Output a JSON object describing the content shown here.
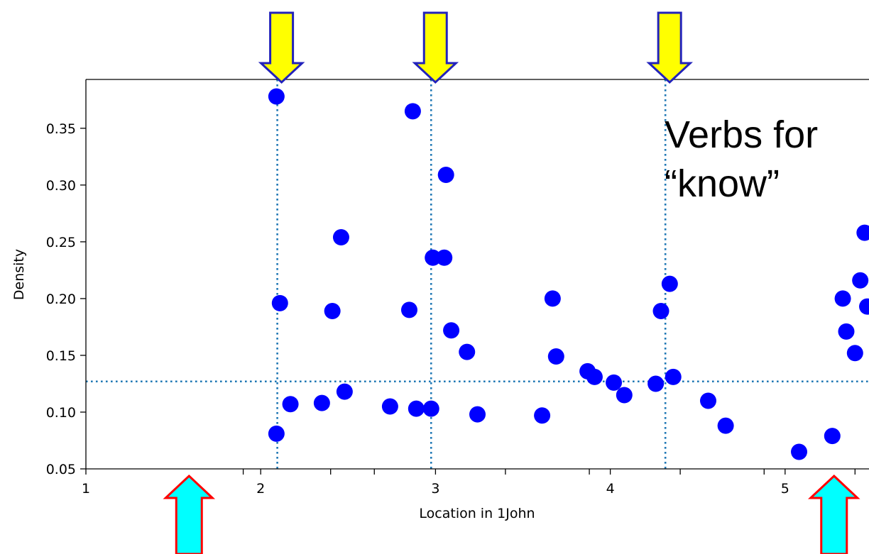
{
  "chart_data": {
    "type": "scatter",
    "xlabel": "Location in 1John",
    "ylabel": "Density",
    "xlim": [
      1.0,
      5.48
    ],
    "ylim": [
      0.05,
      0.393
    ],
    "x_ticks": [
      1,
      2,
      3,
      4,
      5
    ],
    "x_minor_ticks": [
      1.9,
      2.4,
      2.65,
      3.4,
      3.88,
      4.4,
      4.88,
      5.4
    ],
    "y_ticks": [
      0.05,
      0.1,
      0.15,
      0.2,
      0.25,
      0.3,
      0.35
    ],
    "y_tick_labels": [
      "0.05",
      "0.10",
      "0.15",
      "0.20",
      "0.25",
      "0.30",
      "0.35"
    ],
    "x_tick_labels": [
      "1",
      "2",
      "3",
      "4",
      "5"
    ],
    "grid": false,
    "reference_lines": {
      "horizontal_y": 0.127,
      "vertical_x": [
        2.095,
        2.975,
        4.315
      ]
    },
    "annotation": [
      "Verbs for",
      "“know”"
    ],
    "marker_color": "#0000ff",
    "reference_line_color": "#1f77b4",
    "top_arrow_color": "#ffff00",
    "top_arrow_edge": "#2222bb",
    "bottom_arrow_color": "#00ffff",
    "bottom_arrow_edge": "#ff0000",
    "top_arrows_x": [
      2.095,
      2.975,
      4.315
    ],
    "bottom_arrows_x": [
      1.59,
      5.28
    ],
    "points": [
      {
        "x": 2.09,
        "y": 0.378
      },
      {
        "x": 2.11,
        "y": 0.196
      },
      {
        "x": 2.09,
        "y": 0.081
      },
      {
        "x": 2.17,
        "y": 0.107
      },
      {
        "x": 2.35,
        "y": 0.108
      },
      {
        "x": 2.41,
        "y": 0.189
      },
      {
        "x": 2.46,
        "y": 0.254
      },
      {
        "x": 2.48,
        "y": 0.118
      },
      {
        "x": 2.74,
        "y": 0.105
      },
      {
        "x": 2.85,
        "y": 0.19
      },
      {
        "x": 2.87,
        "y": 0.365
      },
      {
        "x": 2.89,
        "y": 0.103
      },
      {
        "x": 2.975,
        "y": 0.103
      },
      {
        "x": 2.985,
        "y": 0.236
      },
      {
        "x": 3.05,
        "y": 0.236
      },
      {
        "x": 3.06,
        "y": 0.309
      },
      {
        "x": 3.09,
        "y": 0.172
      },
      {
        "x": 3.18,
        "y": 0.153
      },
      {
        "x": 3.24,
        "y": 0.098
      },
      {
        "x": 3.61,
        "y": 0.097
      },
      {
        "x": 3.67,
        "y": 0.2
      },
      {
        "x": 3.69,
        "y": 0.149
      },
      {
        "x": 3.87,
        "y": 0.136
      },
      {
        "x": 3.91,
        "y": 0.131
      },
      {
        "x": 4.02,
        "y": 0.126
      },
      {
        "x": 4.08,
        "y": 0.115
      },
      {
        "x": 4.26,
        "y": 0.125
      },
      {
        "x": 4.29,
        "y": 0.189
      },
      {
        "x": 4.34,
        "y": 0.213
      },
      {
        "x": 4.36,
        "y": 0.131
      },
      {
        "x": 4.56,
        "y": 0.11
      },
      {
        "x": 4.66,
        "y": 0.088
      },
      {
        "x": 5.08,
        "y": 0.065
      },
      {
        "x": 5.27,
        "y": 0.079
      },
      {
        "x": 5.33,
        "y": 0.2
      },
      {
        "x": 5.35,
        "y": 0.171
      },
      {
        "x": 5.4,
        "y": 0.152
      },
      {
        "x": 5.43,
        "y": 0.216
      },
      {
        "x": 5.455,
        "y": 0.258
      },
      {
        "x": 5.47,
        "y": 0.193
      }
    ]
  }
}
